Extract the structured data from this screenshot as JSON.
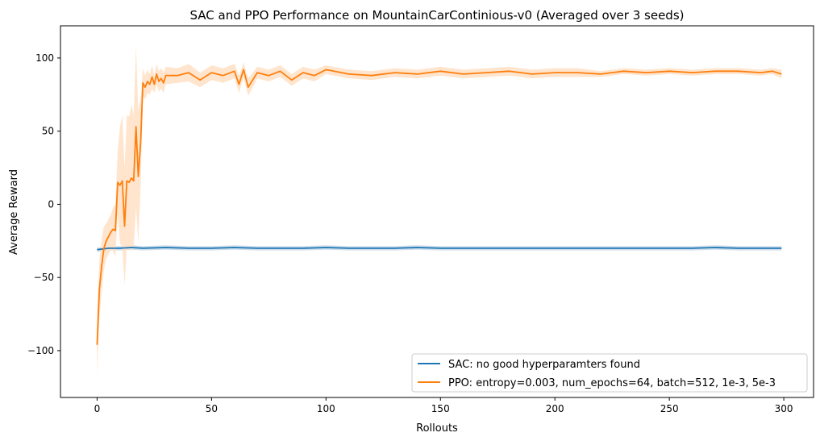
{
  "chart_data": {
    "type": "line",
    "title": "SAC and PPO Performance on MountainCarContinious-v0 (Averaged over 3 seeds)",
    "xlabel": "Rollouts",
    "ylabel": "Average Reward",
    "xlim": [
      -16,
      313
    ],
    "ylim": [
      -132,
      122
    ],
    "xticks": [
      0,
      50,
      100,
      150,
      200,
      250,
      300
    ],
    "yticks": [
      -100,
      -50,
      0,
      50,
      100
    ],
    "xtick_labels": [
      "0",
      "50",
      "100",
      "150",
      "200",
      "250",
      "300"
    ],
    "ytick_labels": [
      "−100",
      "−50",
      "0",
      "50",
      "100"
    ],
    "grid": false,
    "legend_position": "lower-right",
    "series": [
      {
        "name": "SAC: no good hyperparamters found",
        "color": "#1f77b4",
        "band_color": "#c7d9ea",
        "x": [
          0,
          5,
          10,
          15,
          20,
          30,
          40,
          50,
          60,
          70,
          80,
          90,
          100,
          110,
          120,
          130,
          140,
          150,
          160,
          170,
          180,
          190,
          200,
          210,
          220,
          230,
          240,
          250,
          260,
          270,
          280,
          290,
          299
        ],
        "y": [
          -31,
          -30,
          -30,
          -29.5,
          -30,
          -29.5,
          -30,
          -30,
          -29.5,
          -30,
          -30,
          -30,
          -29.5,
          -30,
          -30,
          -30,
          -29.5,
          -30,
          -30,
          -30,
          -30,
          -30,
          -30,
          -30,
          -30,
          -30,
          -30,
          -30,
          -30,
          -29.5,
          -30,
          -30,
          -30
        ],
        "band": [
          1.5,
          1.5,
          1.5,
          1.5,
          1.5,
          1.5,
          1.5,
          1.5,
          1.5,
          1.5,
          1.5,
          1.5,
          1.5,
          1.5,
          1.5,
          1.5,
          1.5,
          1.5,
          1.5,
          1.5,
          1.5,
          1.5,
          1.5,
          1.5,
          1.5,
          1.5,
          1.5,
          1.5,
          1.5,
          1.5,
          1.5,
          1.5,
          1.5
        ]
      },
      {
        "name": "PPO: entropy=0.003,  num_epochs=64, batch=512, 1e-3, 5e-3",
        "color": "#ff7f0e",
        "band_color": "#ffe0c4",
        "x": [
          0,
          1,
          2,
          3,
          4,
          5,
          6,
          7,
          8,
          9,
          10,
          11,
          12,
          13,
          14,
          15,
          16,
          17,
          18,
          19,
          20,
          21,
          22,
          23,
          24,
          25,
          26,
          27,
          28,
          29,
          30,
          35,
          40,
          45,
          50,
          55,
          60,
          62,
          64,
          66,
          70,
          75,
          80,
          85,
          90,
          95,
          100,
          110,
          120,
          130,
          140,
          150,
          160,
          170,
          180,
          190,
          200,
          210,
          220,
          230,
          240,
          250,
          260,
          270,
          280,
          290,
          295,
          299
        ],
        "y": [
          -96,
          -58,
          -42,
          -30,
          -25,
          -22,
          -19,
          -17,
          -18,
          15,
          13,
          16,
          -15,
          16,
          15,
          18,
          16,
          53,
          19,
          42,
          83,
          80,
          84,
          82,
          87,
          82,
          89,
          84,
          86,
          83,
          88,
          88,
          90,
          85,
          90,
          88,
          91,
          82,
          92,
          80,
          90,
          88,
          91,
          85,
          90,
          88,
          92,
          89,
          88,
          90,
          89,
          91,
          89,
          90,
          91,
          89,
          90,
          90,
          89,
          91,
          90,
          91,
          90,
          91,
          91,
          90,
          91,
          89
        ],
        "band": [
          20,
          20,
          18,
          15,
          12,
          12,
          12,
          15,
          18,
          22,
          40,
          45,
          40,
          45,
          45,
          50,
          45,
          55,
          45,
          30,
          10,
          8,
          8,
          7,
          8,
          6,
          7,
          7,
          7,
          7,
          6,
          5,
          6,
          5,
          5,
          5,
          5,
          6,
          5,
          6,
          4,
          4,
          4,
          4,
          4,
          4,
          3,
          3,
          3,
          3,
          3,
          3,
          3,
          3,
          3,
          3,
          3,
          3,
          2,
          2,
          2,
          2,
          2,
          2,
          2,
          2,
          2,
          3
        ]
      }
    ]
  }
}
